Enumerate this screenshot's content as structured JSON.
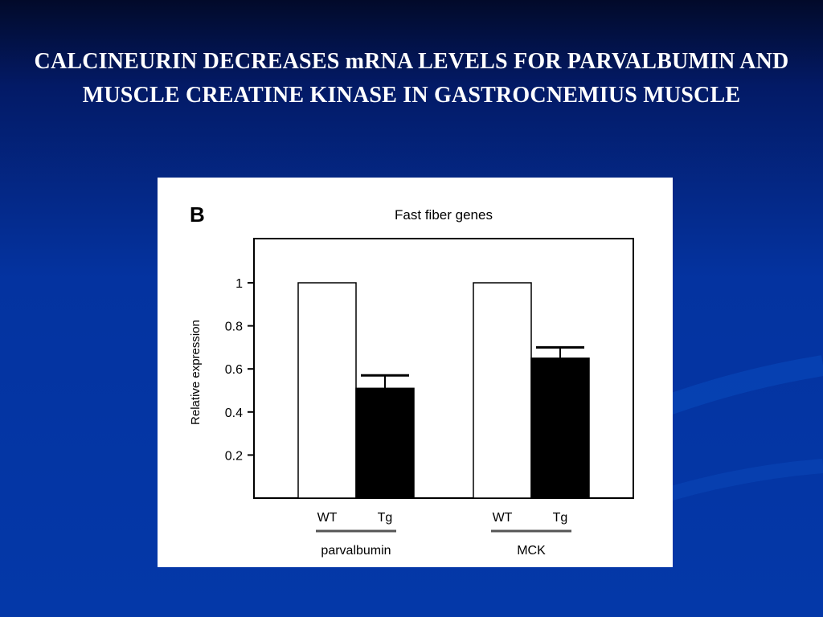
{
  "slide": {
    "title": "CALCINEURIN DECREASES mRNA LEVELS FOR PARVALBUMIN AND MUSCLE CREATINE KINASE IN GASTROCNEMIUS MUSCLE"
  },
  "colors": {
    "background_top": "#020a2a",
    "background_main": "#0438a8",
    "title_text": "#ffffff",
    "wt_bar_fill": "#ffffff",
    "tg_bar_fill": "#000000"
  },
  "chart_data": {
    "type": "bar",
    "panel_label": "B",
    "title": "Fast fiber genes",
    "ylabel": "Relative expression",
    "xlabel": "",
    "ylim": [
      0,
      1.2
    ],
    "yticks": [
      0.2,
      0.4,
      0.6,
      0.8,
      1
    ],
    "ytick_labels": [
      "0.2",
      "0.4",
      "0.6",
      "0.8",
      "1"
    ],
    "groups": [
      {
        "name": "parvalbumin",
        "bars": [
          {
            "label": "WT",
            "value": 1.0,
            "error": 0
          },
          {
            "label": "Tg",
            "value": 0.51,
            "error": 0.06
          }
        ]
      },
      {
        "name": "MCK",
        "bars": [
          {
            "label": "WT",
            "value": 1.0,
            "error": 0
          },
          {
            "label": "Tg",
            "value": 0.65,
            "error": 0.05
          }
        ]
      }
    ],
    "grid": false,
    "legend": "none"
  }
}
